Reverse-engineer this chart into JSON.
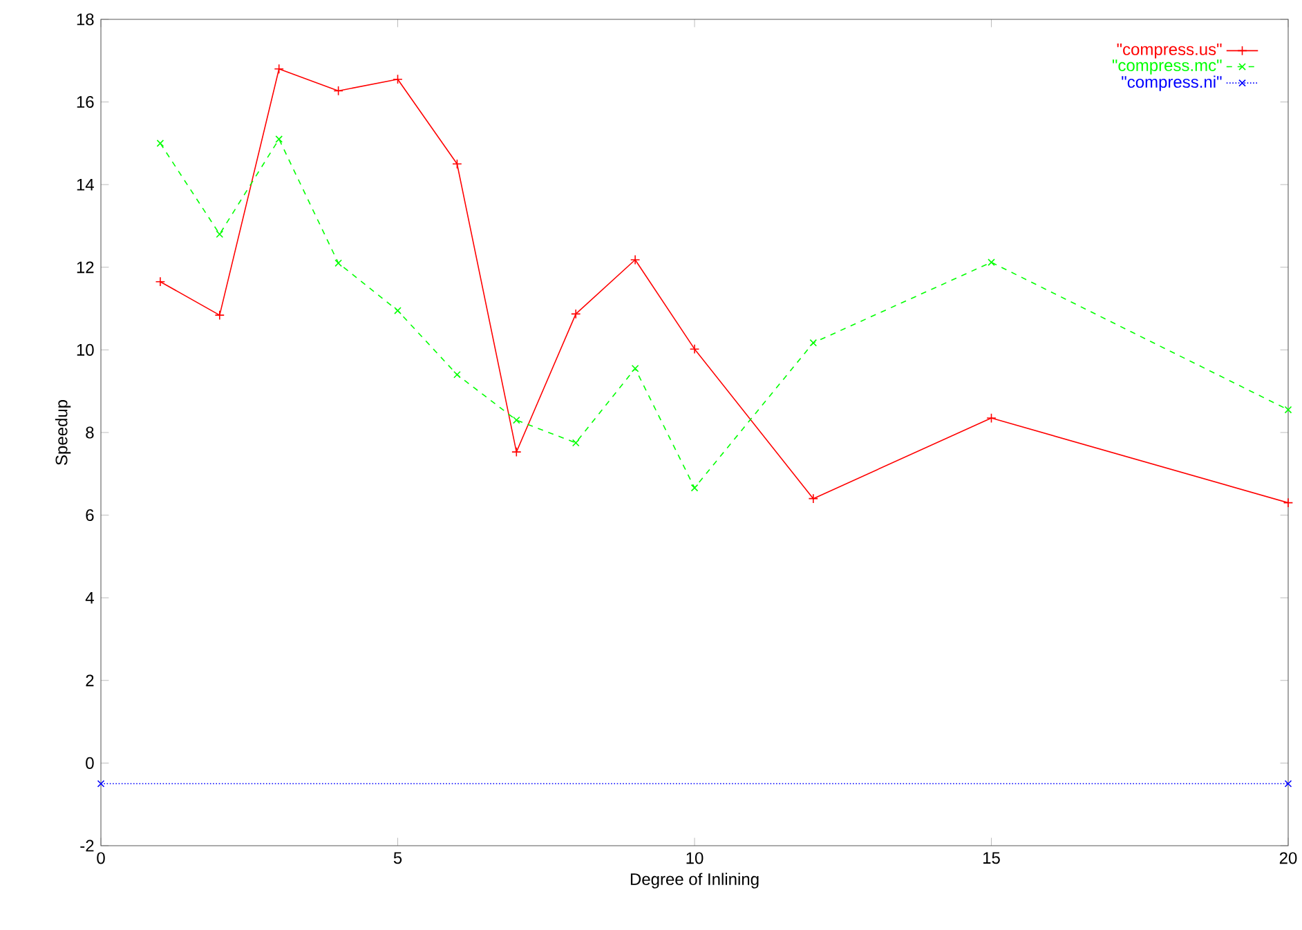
{
  "chart_data": {
    "type": "line",
    "xlabel": "Degree of Inlining",
    "ylabel": "Speedup",
    "xlim": [
      0,
      20
    ],
    "ylim": [
      -2,
      18
    ],
    "xticks": [
      0,
      5,
      10,
      15,
      20
    ],
    "yticks": [
      -2,
      0,
      2,
      4,
      6,
      8,
      10,
      12,
      14,
      16,
      18
    ],
    "legend": "top right",
    "grid": false,
    "series": [
      {
        "name": "\"compress.us\"",
        "color": "#ff0000",
        "marker": "plus",
        "line_style": "solid",
        "x": [
          1,
          2,
          3,
          4,
          5,
          6,
          7,
          8,
          9,
          10,
          12,
          15,
          20
        ],
        "values": [
          11.65,
          10.84,
          16.8,
          16.27,
          16.55,
          14.5,
          7.53,
          10.87,
          12.18,
          10.02,
          6.4,
          8.35,
          6.3
        ]
      },
      {
        "name": "\"compress.mc\"",
        "color": "#00ff00",
        "marker": "cross",
        "line_style": "dashed",
        "x": [
          1,
          2,
          3,
          4,
          5,
          6,
          7,
          8,
          9,
          10,
          12,
          15,
          20
        ],
        "values": [
          15.0,
          12.8,
          15.1,
          12.1,
          10.95,
          9.4,
          8.3,
          7.75,
          9.55,
          6.66,
          10.17,
          12.12,
          8.55
        ]
      },
      {
        "name": "\"compress.ni\"",
        "color": "#0000ff",
        "marker": "cross",
        "line_style": "dotted",
        "x": [
          0,
          20
        ],
        "values": [
          -0.5,
          -0.5
        ]
      }
    ]
  }
}
